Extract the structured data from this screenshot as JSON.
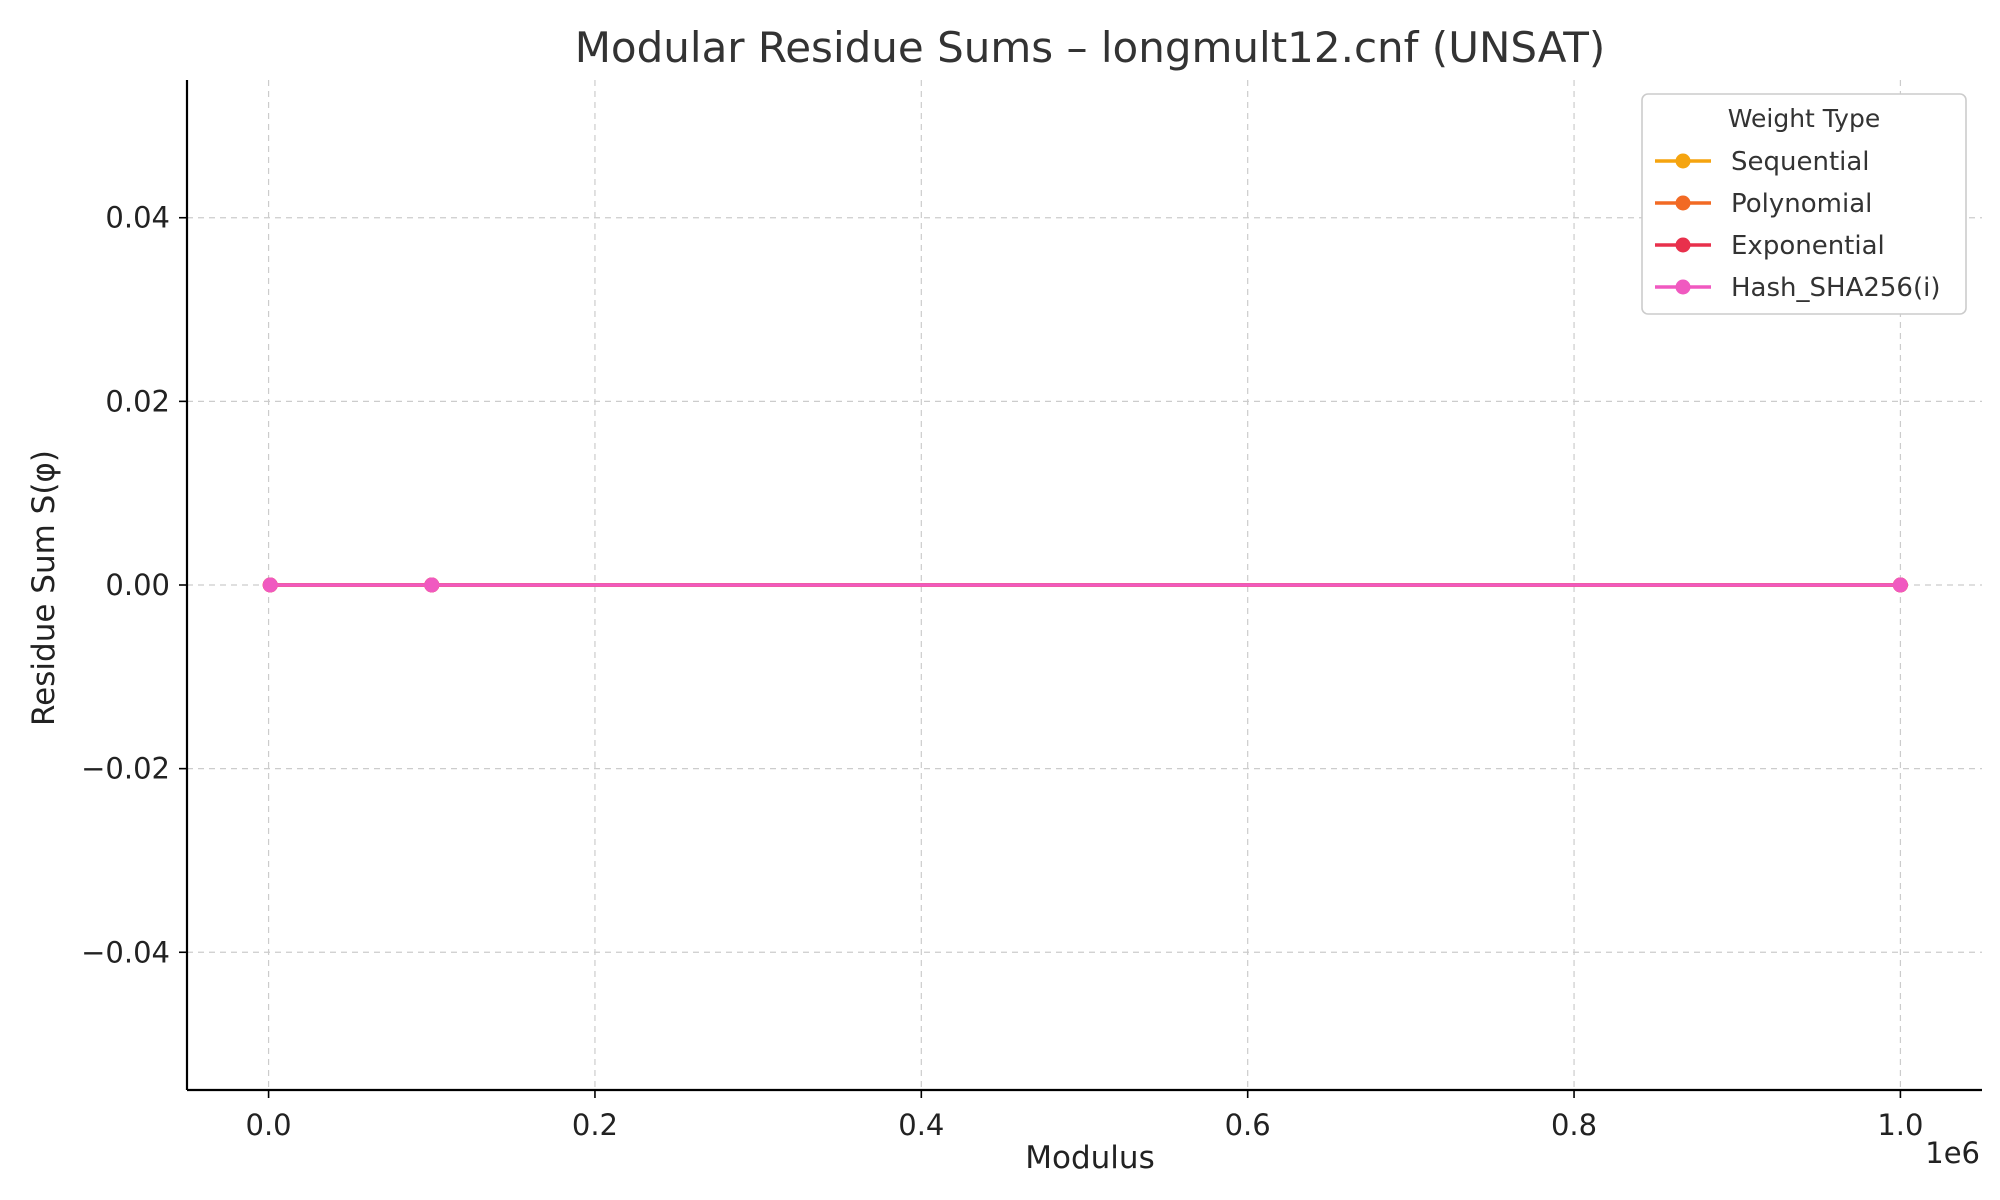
{
  "chart_data": {
    "type": "line",
    "title": "Modular Residue Sums – longmult12.cnf (UNSAT)",
    "xlabel": "Modulus",
    "ylabel": "Residue Sum S(φ)",
    "x_offset_label": "1e6",
    "x": [
      1000,
      100000,
      1000000
    ],
    "xlim": [
      -50000,
      1050000
    ],
    "ylim": [
      -0.055,
      0.055
    ],
    "x_ticks": [
      0,
      200000,
      400000,
      600000,
      800000,
      1000000
    ],
    "x_tick_labels": [
      "0.0",
      "0.2",
      "0.4",
      "0.6",
      "0.8",
      "1.0"
    ],
    "y_ticks": [
      0.04,
      0.02,
      0.0,
      -0.02,
      -0.04
    ],
    "y_tick_labels": [
      "0.04",
      "0.02",
      "0.00",
      "−0.02",
      "−0.04"
    ],
    "grid": true,
    "legend_title": "Weight Type",
    "legend_position": "top-right",
    "series": [
      {
        "name": "Sequential",
        "color": "#f5a40f",
        "values": [
          0,
          0,
          0
        ]
      },
      {
        "name": "Polynomial",
        "color": "#f26a24",
        "values": [
          0,
          0,
          0
        ]
      },
      {
        "name": "Exponential",
        "color": "#e8304c",
        "values": [
          0,
          0,
          0
        ]
      },
      {
        "name": "Hash_SHA256(i)",
        "color": "#f059c0",
        "values": [
          0,
          0,
          0
        ]
      }
    ]
  }
}
